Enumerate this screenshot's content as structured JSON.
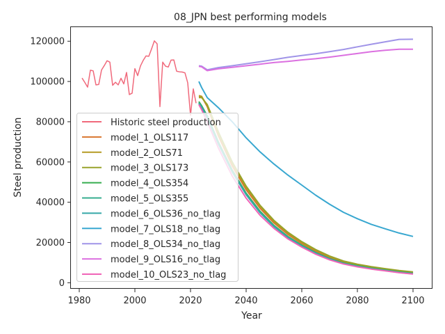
{
  "chart_data": {
    "type": "line",
    "title": "08_JPN best performing models",
    "xlabel": "Year",
    "ylabel": "Steel production",
    "xlim": [
      1977,
      2107
    ],
    "ylim": [
      -3000,
      127000
    ],
    "xticks": [
      1980,
      2000,
      2020,
      2040,
      2060,
      2080,
      2100
    ],
    "yticks": [
      0,
      20000,
      40000,
      60000,
      80000,
      100000,
      120000
    ],
    "xtick_labels": [
      "1980",
      "2000",
      "2020",
      "2040",
      "2060",
      "2080",
      "2100"
    ],
    "ytick_labels": [
      "0",
      "20000",
      "40000",
      "60000",
      "80000",
      "100000",
      "120000"
    ],
    "grid": false,
    "legend_position": "center-left",
    "series": [
      {
        "name": "Historic steel production",
        "color": "#f0697b",
        "x": [
          1981,
          1982,
          1983,
          1984,
          1985,
          1986,
          1987,
          1988,
          1989,
          1990,
          1991,
          1992,
          1993,
          1994,
          1995,
          1996,
          1997,
          1998,
          1999,
          2000,
          2001,
          2002,
          2003,
          2004,
          2005,
          2006,
          2007,
          2008,
          2009,
          2010,
          2011,
          2012,
          2013,
          2014,
          2015,
          2016,
          2017,
          2018,
          2019,
          2020,
          2021,
          2022
        ],
        "y": [
          101700,
          99500,
          97200,
          105600,
          105300,
          98300,
          98500,
          105700,
          107900,
          110300,
          109600,
          98100,
          99600,
          98300,
          101600,
          98800,
          104500,
          93500,
          94200,
          106400,
          102900,
          107700,
          110500,
          112700,
          112500,
          116200,
          120200,
          118700,
          87500,
          109600,
          107600,
          107200,
          110600,
          110700,
          105100,
          104800,
          104700,
          104300,
          99300,
          83200,
          96300,
          89200
        ]
      },
      {
        "name": "model_1_OLS117",
        "color": "#d9752e",
        "x": [
          2023,
          2024,
          2026,
          2030,
          2035,
          2040,
          2045,
          2050,
          2055,
          2060,
          2065,
          2070,
          2075,
          2080,
          2085,
          2090,
          2095,
          2100
        ],
        "y": [
          92700,
          92500,
          87500,
          73000,
          58000,
          46200,
          37000,
          29700,
          24000,
          19500,
          15700,
          12600,
          10200,
          8700,
          7500,
          6500,
          5600,
          4900
        ]
      },
      {
        "name": "model_2_OLS71",
        "color": "#b59a24",
        "x": [
          2023,
          2024,
          2026,
          2030,
          2035,
          2040,
          2045,
          2050,
          2055,
          2060,
          2065,
          2070,
          2075,
          2080,
          2085,
          2090,
          2095,
          2100
        ],
        "y": [
          93000,
          92600,
          88000,
          74000,
          59200,
          47300,
          38000,
          30500,
          24700,
          20000,
          16200,
          13000,
          10600,
          9000,
          7800,
          6800,
          5900,
          5200
        ]
      },
      {
        "name": "model_3_OLS173",
        "color": "#98a32a",
        "x": [
          2023,
          2024,
          2026,
          2030,
          2035,
          2040,
          2045,
          2050,
          2055,
          2060,
          2065,
          2070,
          2075,
          2080,
          2085,
          2090,
          2095,
          2100
        ],
        "y": [
          92000,
          92000,
          88600,
          75000,
          60000,
          48000,
          38500,
          31000,
          25100,
          20400,
          16500,
          13300,
          10800,
          9200,
          8000,
          7000,
          6100,
          5400
        ]
      },
      {
        "name": "model_4_OLS354",
        "color": "#35ad4f",
        "x": [
          2023,
          2024,
          2026,
          2030,
          2035,
          2040,
          2045,
          2050,
          2055,
          2060,
          2065,
          2070,
          2075,
          2080,
          2085,
          2090,
          2095,
          2100
        ],
        "y": [
          90000,
          88000,
          83000,
          70000,
          56000,
          44500,
          35500,
          28500,
          23000,
          18700,
          15000,
          12000,
          9800,
          8400,
          7200,
          6300,
          5400,
          4700
        ]
      },
      {
        "name": "model_5_OLS355",
        "color": "#36ad8f",
        "x": [
          2023,
          2024,
          2026,
          2030,
          2035,
          2040,
          2045,
          2050,
          2055,
          2060,
          2065,
          2070,
          2075,
          2080,
          2085,
          2090,
          2095,
          2100
        ],
        "y": [
          89500,
          87500,
          82500,
          69500,
          55500,
          44000,
          35000,
          28100,
          22700,
          18400,
          14800,
          11900,
          9700,
          8300,
          7100,
          6200,
          5300,
          4600
        ]
      },
      {
        "name": "model_6_OLS36_no_tlag",
        "color": "#35a8a8",
        "x": [
          2023,
          2024,
          2026,
          2030,
          2035,
          2040,
          2045,
          2050,
          2055,
          2060,
          2065,
          2070,
          2075,
          2080,
          2085,
          2090,
          2095,
          2100
        ],
        "y": [
          89000,
          87000,
          82000,
          69000,
          55000,
          43700,
          34800,
          27900,
          22500,
          18200,
          14600,
          11700,
          9500,
          8100,
          6900,
          6000,
          5100,
          4400
        ]
      },
      {
        "name": "model_7_OLS18_no_tlag",
        "color": "#38a7d0",
        "x": [
          2023,
          2024,
          2026,
          2030,
          2035,
          2040,
          2045,
          2050,
          2055,
          2060,
          2065,
          2070,
          2075,
          2080,
          2085,
          2090,
          2095,
          2100
        ],
        "y": [
          100000,
          97000,
          92000,
          87000,
          80000,
          72000,
          65000,
          59000,
          53500,
          48500,
          43500,
          39000,
          35000,
          31800,
          29000,
          26800,
          24700,
          23000
        ]
      },
      {
        "name": "model_8_OLS34_no_tlag",
        "color": "#a094e8",
        "x": [
          2023,
          2024,
          2026,
          2030,
          2035,
          2040,
          2045,
          2050,
          2055,
          2060,
          2065,
          2070,
          2075,
          2080,
          2085,
          2090,
          2095,
          2100
        ],
        "y": [
          107800,
          107600,
          105800,
          106900,
          107800,
          108800,
          109800,
          110900,
          112000,
          112900,
          113800,
          114800,
          115900,
          117200,
          118500,
          119700,
          120900,
          121000
        ]
      },
      {
        "name": "model_9_OLS16_no_tlag",
        "color": "#db70e0",
        "x": [
          2023,
          2024,
          2026,
          2030,
          2035,
          2040,
          2045,
          2050,
          2055,
          2060,
          2065,
          2070,
          2075,
          2080,
          2085,
          2090,
          2095,
          2100
        ],
        "y": [
          107500,
          107300,
          105400,
          106300,
          107000,
          107800,
          108600,
          109400,
          110000,
          110700,
          111300,
          112100,
          113000,
          113900,
          114800,
          115500,
          116000,
          116000
        ]
      },
      {
        "name": "model_10_OLS23_no_tlag",
        "color": "#f064b7",
        "x": [
          2023,
          2024,
          2026,
          2030,
          2035,
          2040,
          2045,
          2050,
          2055,
          2060,
          2065,
          2070,
          2075,
          2080,
          2085,
          2090,
          2095,
          2100
        ],
        "y": [
          88500,
          86000,
          80000,
          67000,
          53000,
          42000,
          33500,
          27000,
          21800,
          17700,
          14200,
          11400,
          9300,
          7900,
          6800,
          5900,
          5000,
          4300
        ]
      }
    ]
  }
}
